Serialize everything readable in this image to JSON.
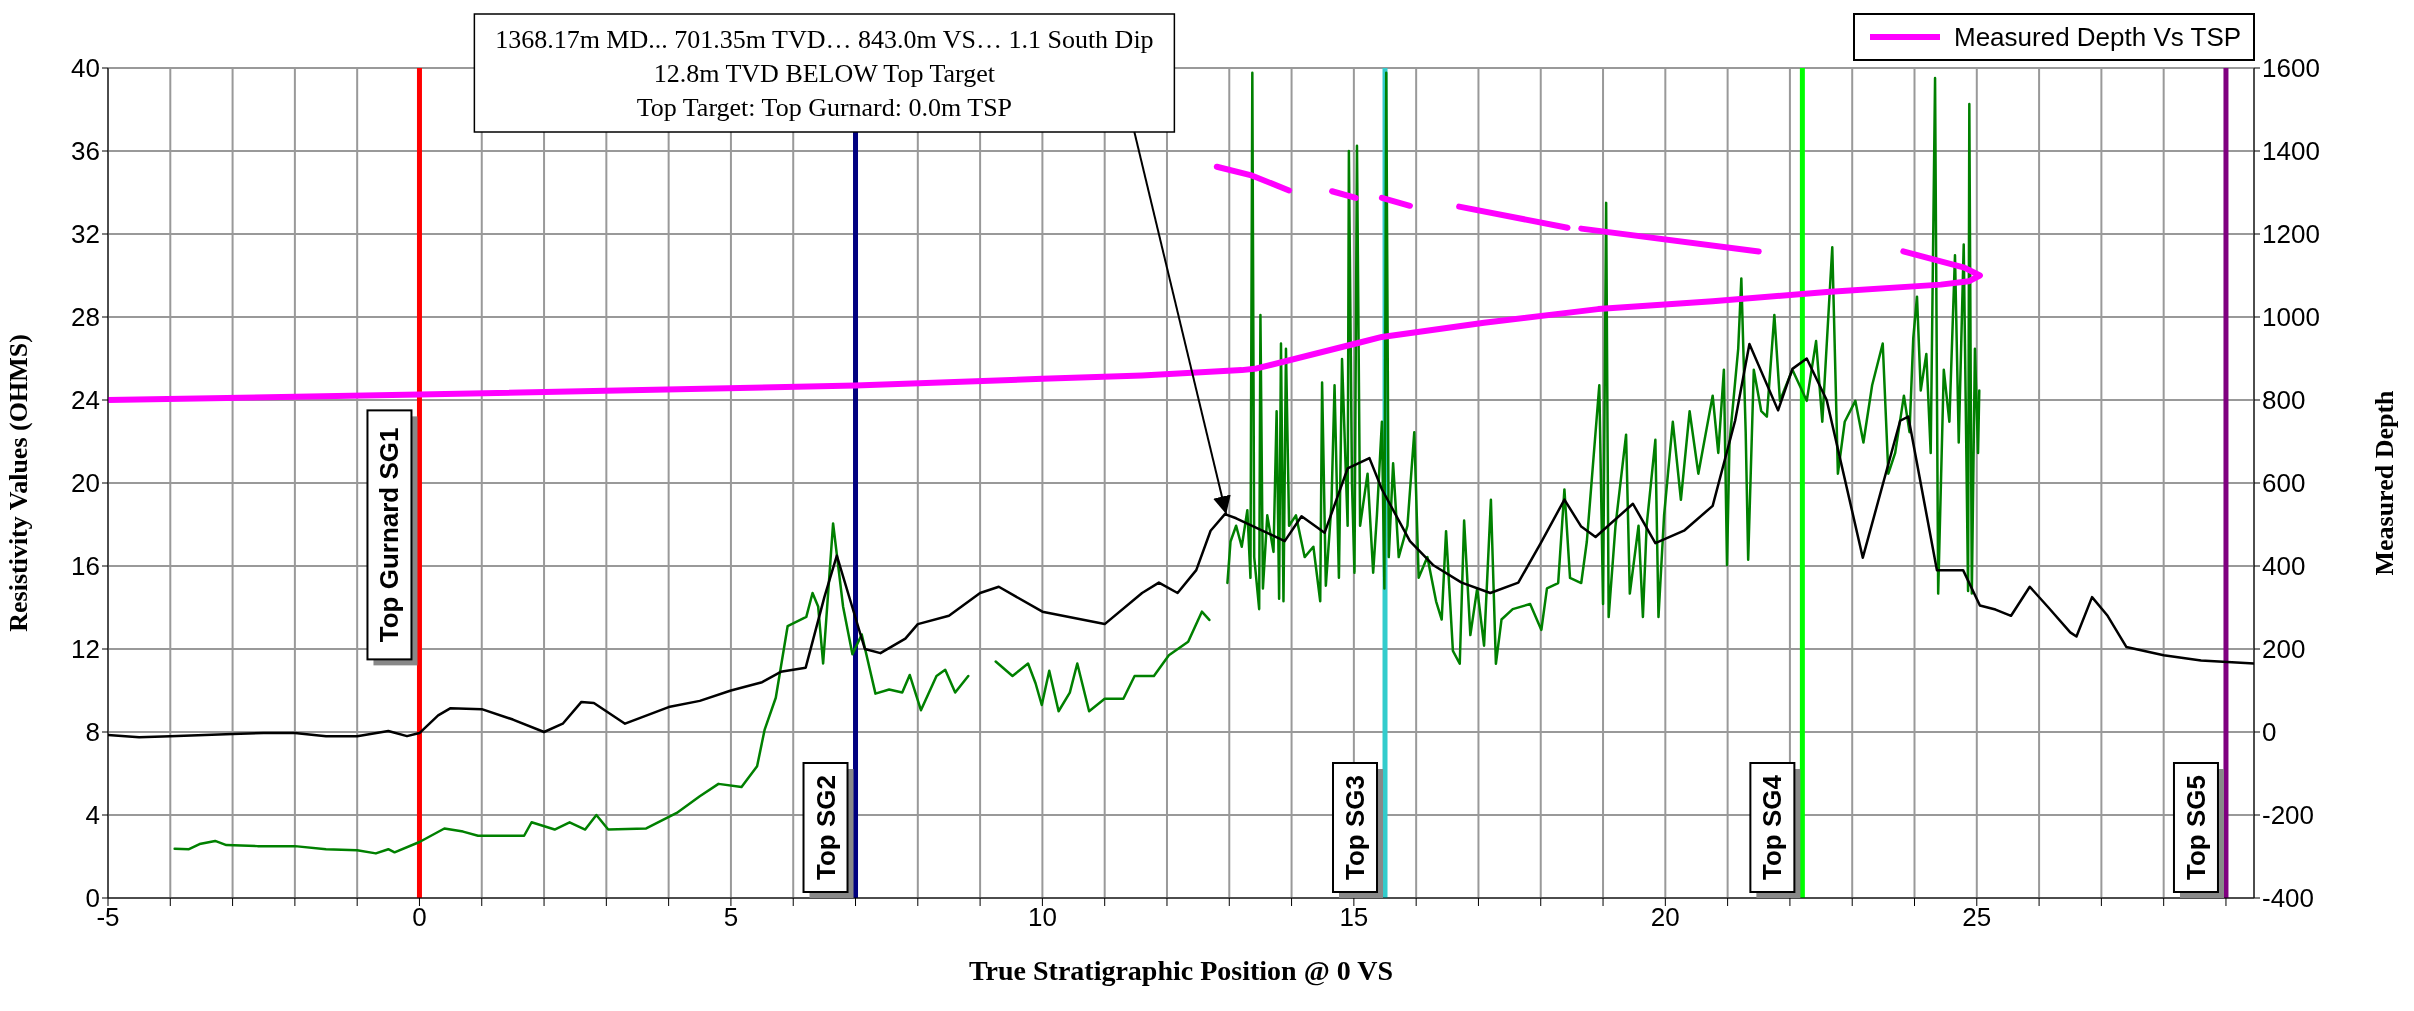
{
  "chart_data": {
    "type": "line",
    "xlabel": "True Stratigraphic Position @ 0 VS",
    "ylabel": "Resistivity Values (OHMS)",
    "y2label": "Measured Depth",
    "xlim": [
      -5,
      29.45
    ],
    "xticks": [
      -5,
      {
        "value": -4,
        "label": null
      },
      {
        "value": -3,
        "label": null
      },
      {
        "value": -2,
        "label": null
      },
      {
        "value": -1,
        "label": null
      },
      0,
      {
        "value": 1,
        "label": null
      },
      {
        "value": 2,
        "label": null
      },
      {
        "value": 3,
        "label": null
      },
      {
        "value": 4,
        "label": null
      },
      5,
      {
        "value": 6,
        "label": null
      },
      {
        "value": 7,
        "label": null
      },
      {
        "value": 8,
        "label": null
      },
      {
        "value": 9,
        "label": null
      },
      10,
      {
        "value": 11,
        "label": null
      },
      {
        "value": 12,
        "label": null
      },
      {
        "value": 13,
        "label": null
      },
      {
        "value": 14,
        "label": null
      },
      15,
      {
        "value": 16,
        "label": null
      },
      {
        "value": 17,
        "label": null
      },
      {
        "value": 18,
        "label": null
      },
      {
        "value": 19,
        "label": null
      },
      20,
      {
        "value": 21,
        "label": null
      },
      {
        "value": 22,
        "label": null
      },
      {
        "value": 23,
        "label": null
      },
      {
        "value": 24,
        "label": null
      },
      25,
      {
        "value": 26,
        "label": null
      },
      {
        "value": 27,
        "label": null
      },
      {
        "value": 28,
        "label": null
      },
      {
        "value": 29,
        "label": null
      }
    ],
    "ylim": [
      0,
      40
    ],
    "yticks": [
      0,
      4,
      8,
      12,
      16,
      20,
      24,
      28,
      32,
      36,
      40
    ],
    "y2lim": [
      -400,
      1600
    ],
    "y2ticks": [
      -400,
      -200,
      0,
      200,
      400,
      600,
      800,
      1000,
      1200,
      1400,
      1600
    ],
    "grid": true,
    "legend": "top right",
    "series": [
      {
        "color": "#008000",
        "x": [
          -3.93,
          -3.7,
          -3.53,
          -3.28,
          -3.1,
          -2.6,
          -2.0,
          -1.5,
          -1.0,
          -0.7,
          -0.5,
          -0.4,
          0.0,
          0.4,
          0.7,
          0.94,
          1.68,
          1.8,
          2.17,
          2.41,
          2.66,
          2.84,
          3.03,
          3.64,
          4.13,
          4.5,
          4.8,
          5.17,
          5.42,
          5.54,
          5.72,
          5.91,
          6.21,
          6.31,
          6.4,
          6.48,
          6.64,
          6.8,
          6.95,
          7.1,
          7.32,
          7.54,
          7.75,
          7.87,
          8.05,
          8.3,
          8.44,
          8.6,
          8.81,
          9.0,
          9.25,
          9.52,
          9.77,
          9.89,
          9.99,
          10.11,
          10.26,
          10.44,
          10.56,
          10.75,
          11.0,
          11.3,
          11.48,
          11.79,
          12.03,
          12.34,
          12.56,
          12.68,
          12.82,
          12.97,
          13.02,
          13.11,
          13.2,
          13.29,
          13.34,
          13.37,
          13.4,
          13.48,
          13.5,
          13.54,
          13.61,
          13.71,
          13.76,
          13.8,
          13.83,
          13.87,
          13.91,
          13.96,
          14.07,
          14.21,
          14.35,
          14.46,
          14.49,
          14.55,
          14.64,
          14.69,
          14.76,
          14.81,
          14.9,
          14.92,
          14.97,
          15.01,
          15.05,
          15.1,
          15.22,
          15.31,
          15.37,
          15.45,
          15.49,
          15.52,
          15.56,
          15.63,
          15.72,
          15.86,
          15.97,
          16.04,
          16.18,
          16.32,
          16.41,
          16.48,
          16.59,
          16.7,
          16.77,
          16.87,
          16.98,
          17.09,
          17.2,
          17.28,
          17.37,
          17.55,
          17.83,
          18.01,
          18.1,
          18.28,
          18.38,
          18.47,
          18.65,
          18.74,
          18.94,
          19.0,
          19.05,
          19.09,
          19.2,
          19.37,
          19.43,
          19.57,
          19.64,
          19.7,
          19.84,
          19.89,
          19.98,
          20.12,
          20.25,
          20.39,
          20.53,
          20.76,
          20.85,
          20.94,
          20.99,
          21.03,
          21.17,
          21.22,
          21.29,
          21.33,
          21.42,
          21.54,
          21.63,
          21.75,
          21.84,
          22.04,
          22.27,
          22.42,
          22.52,
          22.68,
          22.77,
          22.88,
          23.05,
          23.18,
          23.32,
          23.49,
          23.58,
          23.69,
          23.83,
          23.92,
          23.98,
          24.04,
          24.1,
          24.19,
          24.26,
          24.33,
          24.38,
          24.47,
          24.56,
          24.65,
          24.71,
          24.79,
          24.86,
          24.88,
          24.92,
          24.97,
          25.02,
          25.04
        ],
        "values": [
          2.37,
          2.35,
          2.6,
          2.75,
          2.55,
          2.5,
          2.5,
          2.35,
          2.3,
          2.15,
          2.35,
          2.2,
          2.7,
          3.35,
          3.2,
          3.0,
          3.0,
          3.65,
          3.3,
          3.65,
          3.3,
          4.0,
          3.3,
          3.35,
          4.1,
          4.9,
          5.5,
          5.35,
          6.35,
          8.1,
          9.65,
          13.1,
          13.55,
          14.7,
          14.05,
          11.3,
          18.05,
          14.05,
          11.75,
          12.7,
          9.85,
          10.05,
          9.9,
          10.75,
          9.05,
          10.7,
          11.0,
          9.9,
          10.7,
          null,
          11.4,
          10.7,
          11.3,
          10.35,
          9.3,
          10.95,
          9.0,
          9.9,
          11.3,
          9.0,
          9.6,
          9.6,
          10.7,
          10.7,
          11.7,
          12.35,
          13.8,
          13.4,
          null,
          15.18,
          17.18,
          17.94,
          16.93,
          18.69,
          15.43,
          39.77,
          16.43,
          13.92,
          28.1,
          14.92,
          18.44,
          16.68,
          23.46,
          14.42,
          26.72,
          14.3,
          26.47,
          17.94,
          18.44,
          16.43,
          16.93,
          14.3,
          24.84,
          15.05,
          18.94,
          24.71,
          15.43,
          25.97,
          17.94,
          36.0,
          19.94,
          15.68,
          36.25,
          17.94,
          20.45,
          15.68,
          18.44,
          22.95,
          14.92,
          39.77,
          16.43,
          20.95,
          16.43,
          17.94,
          22.45,
          15.43,
          16.43,
          14.3,
          13.42,
          17.68,
          11.91,
          11.29,
          18.19,
          12.67,
          14.92,
          12.16,
          19.19,
          11.29,
          13.42,
          13.92,
          14.17,
          12.92,
          14.92,
          15.18,
          19.69,
          15.43,
          15.18,
          17.18,
          24.71,
          14.17,
          33.5,
          13.54,
          17.94,
          22.33,
          14.67,
          17.94,
          13.54,
          17.94,
          22.08,
          13.54,
          18.44,
          22.95,
          19.19,
          23.46,
          20.45,
          24.21,
          21.45,
          25.46,
          16.05,
          21.95,
          26.47,
          29.86,
          22.45,
          16.3,
          25.46,
          23.46,
          23.2,
          28.1,
          23.96,
          25.46,
          23.96,
          26.84,
          22.95,
          31.36,
          20.45,
          22.95,
          23.96,
          21.95,
          24.71,
          26.72,
          20.45,
          21.45,
          24.21,
          22.45,
          26.97,
          28.98,
          24.46,
          26.22,
          21.45,
          39.52,
          14.67,
          25.46,
          22.95,
          30.98,
          21.95,
          31.49,
          14.8,
          38.26,
          14.67,
          26.47,
          21.45,
          24.46
        ]
      },
      {
        "color": "#000000",
        "x": [
          -5,
          -4.5,
          -4,
          -3,
          -2.5,
          -2,
          -1.5,
          -1,
          -0.5,
          -0.2,
          0,
          0.3,
          0.5,
          1.0,
          1.5,
          2.0,
          2.3,
          2.6,
          2.8,
          3.3,
          4.0,
          4.5,
          5.0,
          5.5,
          5.8,
          6.2,
          6.5,
          6.7,
          6.95,
          7.15,
          7.4,
          7.8,
          8.0,
          8.5,
          9.0,
          9.3,
          10.0,
          11.0,
          11.6,
          11.87,
          12.17,
          12.47,
          12.7,
          12.93,
          13.11,
          13.89,
          14.16,
          14.53,
          14.9,
          15.25,
          15.45,
          15.9,
          16.27,
          16.73,
          17.19,
          17.64,
          18.0,
          18.38,
          18.65,
          18.88,
          19.48,
          19.84,
          20.3,
          20.76,
          21.12,
          21.35,
          21.81,
          22.04,
          22.27,
          22.59,
          23.17,
          23.77,
          23.9,
          24.36,
          24.78,
          25.05,
          25.3,
          25.55,
          25.85,
          26.15,
          26.5,
          26.6,
          26.85,
          27.1,
          27.4,
          28.0,
          28.6,
          29.45
        ],
        "values": [
          7.85,
          7.75,
          7.8,
          7.9,
          7.95,
          7.95,
          7.8,
          7.8,
          8.05,
          7.8,
          7.95,
          8.8,
          9.15,
          9.1,
          8.6,
          8.0,
          8.4,
          9.45,
          9.4,
          8.4,
          9.2,
          9.5,
          10.0,
          10.4,
          10.9,
          11.1,
          14.5,
          16.5,
          14.0,
          12.0,
          11.8,
          12.5,
          13.2,
          13.6,
          14.7,
          15.0,
          13.8,
          13.2,
          14.7,
          15.2,
          14.7,
          15.8,
          17.7,
          18.5,
          18.3,
          17.2,
          18.4,
          17.6,
          20.7,
          21.2,
          19.7,
          17.2,
          16.05,
          15.2,
          14.7,
          15.2,
          17.1,
          19.2,
          17.9,
          17.4,
          19.0,
          17.1,
          17.7,
          18.9,
          23.0,
          26.7,
          23.5,
          25.5,
          26.0,
          24.0,
          16.4,
          23.0,
          23.2,
          15.8,
          15.8,
          14.1,
          13.9,
          13.6,
          15.0,
          14.0,
          12.8,
          12.6,
          14.5,
          13.6,
          12.1,
          11.7,
          11.45,
          11.3
        ]
      },
      {
        "name": "Measured Depth Vs TSP",
        "color": "#ff00ff",
        "axis": "y2",
        "x": [
          -5,
          0,
          7,
          10,
          11.6,
          13.2,
          13.44,
          15.08,
          15.45,
          17.09,
          18.92,
          20.76,
          22.59,
          24.42,
          24.87,
          25.05,
          24.8,
          23.82,
          22.7,
          21.5,
          18.65,
          18.54,
          18.43,
          16.69,
          16.3,
          15.9,
          15.45,
          15.24,
          15.03,
          14.65,
          14.3,
          13.96,
          13.34,
          12.8
        ],
        "values": [
          800,
          813,
          835,
          851,
          859,
          872,
          876,
          938,
          952,
          986,
          1019,
          1038,
          1060,
          1078,
          1086,
          1100,
          1119,
          1158,
          null,
          1158,
          1213,
          null,
          1215,
          1266,
          null,
          1268,
          1287,
          null,
          1287,
          1303,
          null,
          1305,
          1342,
          1362
        ]
      }
    ],
    "ref_lines": [
      {
        "axis": "x",
        "value": 0,
        "label": "Top Gurnard SG1",
        "color": "#ff0000"
      },
      {
        "axis": "x",
        "value": 7,
        "label": "Top SG2",
        "color": "#000080"
      },
      {
        "axis": "x",
        "value": 15.5,
        "label": "Top SG3",
        "color": "#33cccc"
      },
      {
        "axis": "x",
        "value": 22.2,
        "label": "Top SG4",
        "color": "#00ff00"
      },
      {
        "axis": "x",
        "value": 29.0,
        "label": "Top SG5",
        "color": "#800080"
      }
    ],
    "annotations": [
      {
        "text": "1368.17m  MD... 701.35m TVD… 843.0m VS… 1.1 South  Dip\n12.8m TVD BELOW Top Target\nTop  Target: Top Gurnard: 0.0m TSP",
        "x": 12.95,
        "y": 18.5
      }
    ]
  }
}
